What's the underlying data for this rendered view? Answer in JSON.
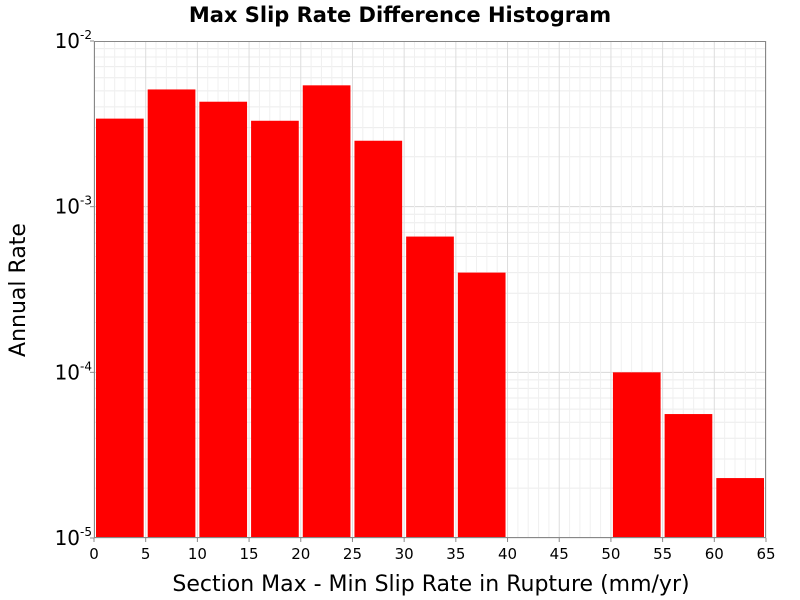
{
  "chart_data": {
    "type": "bar",
    "title": "Max Slip Rate Difference Histogram",
    "xlabel": "Section Max - Min Slip Rate in Rupture (mm/yr)",
    "ylabel": "Annual Rate",
    "xlim": [
      0,
      65
    ],
    "ylim": [
      1e-05,
      0.01
    ],
    "yscale": "log",
    "grid": true,
    "bar_color": "#ff0000",
    "bin_width": 5,
    "bins": [
      {
        "x0": 0,
        "x1": 5,
        "value": 0.0034
      },
      {
        "x0": 5,
        "x1": 10,
        "value": 0.0051
      },
      {
        "x0": 10,
        "x1": 15,
        "value": 0.0043
      },
      {
        "x0": 15,
        "x1": 20,
        "value": 0.0033
      },
      {
        "x0": 20,
        "x1": 25,
        "value": 0.0054
      },
      {
        "x0": 25,
        "x1": 30,
        "value": 0.0025
      },
      {
        "x0": 30,
        "x1": 35,
        "value": 0.00066
      },
      {
        "x0": 35,
        "x1": 40,
        "value": 0.0004
      },
      {
        "x0": 50,
        "x1": 55,
        "value": 0.0001
      },
      {
        "x0": 55,
        "x1": 60,
        "value": 5.6e-05
      },
      {
        "x0": 60,
        "x1": 65,
        "value": 2.3e-05
      }
    ],
    "x_ticks": [
      "0",
      "5",
      "10",
      "15",
      "20",
      "25",
      "30",
      "35",
      "40",
      "45",
      "50",
      "55",
      "60",
      "65"
    ],
    "y_ticks": [
      {
        "base": "10",
        "exp": "-5",
        "value": 1e-05
      },
      {
        "base": "10",
        "exp": "-4",
        "value": 0.0001
      },
      {
        "base": "10",
        "exp": "-3",
        "value": 0.001
      },
      {
        "base": "10",
        "exp": "-2",
        "value": 0.01
      }
    ]
  }
}
